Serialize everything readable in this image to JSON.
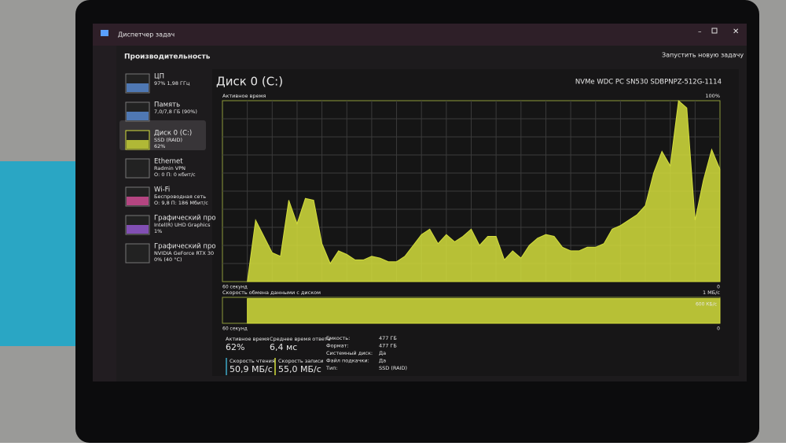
{
  "window": {
    "title": "Диспетчер задач",
    "section": "Производительность",
    "action": "Запустить новую задачу"
  },
  "sidebar": [
    {
      "name": "ЦП",
      "line1": "97% 1,98 ГГц"
    },
    {
      "name": "Память",
      "line1": "7,0/7,8 ГБ (90%)"
    },
    {
      "name": "Диск 0 (C:)",
      "line1": "SSD (RAID)",
      "line2": "62%"
    },
    {
      "name": "Ethernet",
      "line1": "Radmin VPN",
      "line2": "О: 0 П: 0 кбит/с"
    },
    {
      "name": "Wi-Fi",
      "line1": "Беспроводная сеть",
      "line2": "О: 9,8 П: 186 Мбит/с"
    },
    {
      "name": "Графический про",
      "line1": "Intel(R) UHD Graphics",
      "line2": "1%"
    },
    {
      "name": "Графический про",
      "line1": "NVIDIA GeForce RTX 30",
      "line2": "0% (40 °C)"
    }
  ],
  "main": {
    "title": "Диск 0 (C:)",
    "model": "NVMe WDC PC SN530 SDBPNPZ-512G-1114"
  },
  "chart_data": [
    {
      "type": "area",
      "label": "Активное время",
      "max_label": "100%",
      "left_label": "60 секунд",
      "right_label": "0",
      "color": "#d4de3c",
      "ylim": [
        0,
        100
      ],
      "values": [
        null,
        null,
        null,
        0,
        34,
        25,
        16,
        14,
        45,
        32,
        46,
        45,
        21,
        10,
        17,
        15,
        12,
        12,
        14,
        13,
        11,
        11,
        14,
        20,
        26,
        29,
        21,
        26,
        22,
        25,
        29,
        20,
        25,
        25,
        12,
        17,
        13,
        20,
        24,
        26,
        25,
        19,
        17,
        17,
        19,
        19,
        21,
        29,
        31,
        34,
        37,
        42,
        60,
        72,
        64,
        100,
        96,
        34,
        56,
        73,
        62
      ]
    },
    {
      "type": "area",
      "label": "Скорость обмена данными с диском",
      "max_label": "1 МБ/с",
      "mid_label": "600 КБ/с",
      "left_label": "60 секунд",
      "right_label": "0",
      "color": "#d4de3c",
      "ylim": [
        0,
        1
      ],
      "values": [
        null,
        null,
        null,
        0.95,
        0.95,
        0.95,
        0.95,
        0.95,
        0.95,
        0.95,
        0.95,
        0.95,
        0.95,
        0.95,
        0.95,
        0.95,
        0.95,
        0.95,
        0.95,
        0.95,
        0.95,
        0.95,
        0.95,
        0.95,
        0.95,
        0.95,
        0.95,
        0.95,
        0.95,
        0.95,
        0.95,
        0.95,
        0.95,
        0.95,
        0.95,
        0.95,
        0.95,
        0.95,
        0.95,
        0.95,
        0.95,
        0.95,
        0.95,
        0.95,
        0.95,
        0.95,
        0.95,
        0.95,
        0.95,
        0.95,
        0.95,
        0.95,
        0.95,
        0.95,
        0.95,
        0.95,
        0.95,
        0.95,
        0.95,
        0.95,
        0.95
      ]
    }
  ],
  "stats": [
    {
      "label": "Активное время",
      "value": "62%"
    },
    {
      "label": "Среднее время ответа",
      "value": "6,4 мс"
    },
    {
      "label": "Скорость чтения",
      "value": "50,9 МБ/с"
    },
    {
      "label": "Скорость записи",
      "value": "55,0 МБ/с"
    }
  ],
  "properties": [
    [
      "Емкость:",
      "477 ГБ"
    ],
    [
      "Формат:",
      "477 ГБ"
    ],
    [
      "Системный диск:",
      "Да"
    ],
    [
      "Файл подкачки:",
      "Да"
    ],
    [
      "Тип:",
      "SSD (RAID)"
    ]
  ]
}
